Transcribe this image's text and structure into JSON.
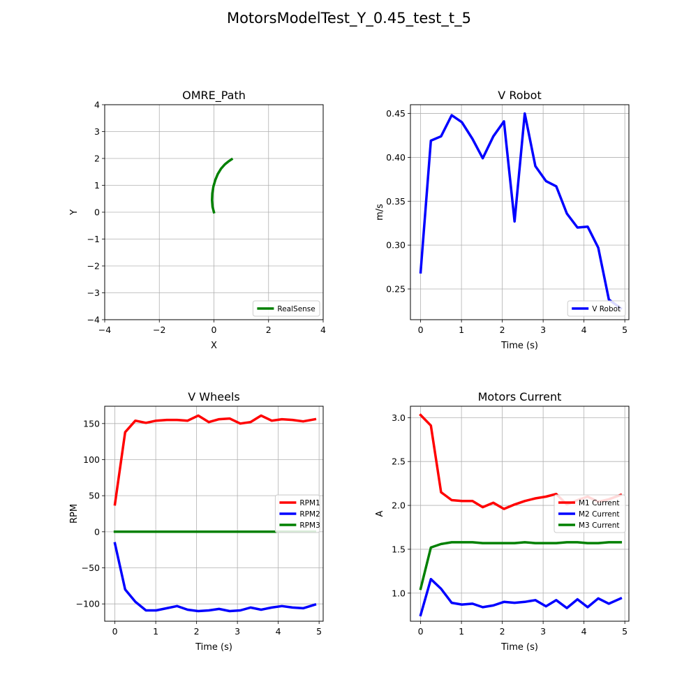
{
  "figure": {
    "suptitle": "MotorsModelTest_Y_0.45_test_t_5"
  },
  "chart_data": [
    {
      "type": "line",
      "title": "OMRE_Path",
      "xlabel": "X",
      "ylabel": "Y",
      "xlim": [
        -4,
        4
      ],
      "ylim": [
        -4,
        4
      ],
      "xticks": [
        -4,
        -2,
        0,
        2,
        4
      ],
      "yticks": [
        -4,
        -3,
        -2,
        -1,
        0,
        1,
        2,
        3,
        4
      ],
      "grid": true,
      "legend_position": "lower-right",
      "series": [
        {
          "name": "RealSense",
          "color": "#008000",
          "x": [
            0.0,
            -0.05,
            -0.07,
            -0.06,
            -0.02,
            0.05,
            0.14,
            0.26,
            0.4,
            0.55,
            0.65
          ],
          "y": [
            0.0,
            0.2,
            0.45,
            0.7,
            0.95,
            1.2,
            1.42,
            1.62,
            1.78,
            1.9,
            1.97
          ]
        }
      ]
    },
    {
      "type": "line",
      "title": "V Robot",
      "xlabel": "Time (s)",
      "ylabel": "m/s",
      "xlim": [
        -0.25,
        5.1
      ],
      "ylim": [
        0.215,
        0.46
      ],
      "xticks": [
        0,
        1,
        2,
        3,
        4,
        5
      ],
      "yticks": [
        0.25,
        0.3,
        0.35,
        0.4,
        0.45
      ],
      "ytick_format": 2,
      "grid": true,
      "legend_position": "lower-right",
      "series": [
        {
          "name": "V Robot",
          "color": "#0000ff",
          "x": [
            0.0,
            0.25,
            0.5,
            0.76,
            1.01,
            1.27,
            1.52,
            1.78,
            2.04,
            2.3,
            2.55,
            2.81,
            3.07,
            3.32,
            3.58,
            3.84,
            4.09,
            4.35,
            4.61,
            4.9
          ],
          "y": [
            0.269,
            0.419,
            0.424,
            0.448,
            0.44,
            0.421,
            0.399,
            0.424,
            0.441,
            0.327,
            0.45,
            0.39,
            0.373,
            0.367,
            0.336,
            0.32,
            0.321,
            0.297,
            0.238,
            0.228
          ]
        }
      ]
    },
    {
      "type": "line",
      "title": "V Wheels",
      "xlabel": "Time (s)",
      "ylabel": "RPM",
      "xlim": [
        -0.25,
        5.1
      ],
      "ylim": [
        -124,
        174
      ],
      "xticks": [
        0,
        1,
        2,
        3,
        4,
        5
      ],
      "yticks": [
        -100,
        -50,
        0,
        50,
        100,
        150
      ],
      "grid": true,
      "legend_position": "center-right",
      "series": [
        {
          "name": "RPM1",
          "color": "#ff0000",
          "x": [
            0.0,
            0.25,
            0.5,
            0.76,
            1.01,
            1.27,
            1.52,
            1.78,
            2.04,
            2.3,
            2.55,
            2.81,
            3.07,
            3.32,
            3.58,
            3.84,
            4.09,
            4.35,
            4.61,
            4.9
          ],
          "y": [
            38,
            138,
            154,
            151,
            154,
            155,
            155,
            154,
            161,
            152,
            156,
            157,
            150,
            152,
            161,
            154,
            156,
            155,
            153,
            156
          ]
        },
        {
          "name": "RPM2",
          "color": "#0000ff",
          "x": [
            0.0,
            0.25,
            0.5,
            0.76,
            1.01,
            1.27,
            1.52,
            1.78,
            2.04,
            2.3,
            2.55,
            2.81,
            3.07,
            3.32,
            3.58,
            3.84,
            4.09,
            4.35,
            4.61,
            4.9
          ],
          "y": [
            -16,
            -80,
            -97,
            -109,
            -109,
            -106,
            -103,
            -108,
            -110,
            -109,
            -107,
            -110,
            -109,
            -105,
            -108,
            -105,
            -103,
            -105,
            -106,
            -101
          ]
        },
        {
          "name": "RPM3",
          "color": "#008000",
          "x": [
            0.0,
            4.9
          ],
          "y": [
            0,
            0
          ]
        }
      ]
    },
    {
      "type": "line",
      "title": "Motors Current",
      "xlabel": "Time (s)",
      "ylabel": "A",
      "xlim": [
        -0.25,
        5.1
      ],
      "ylim": [
        0.68,
        3.13
      ],
      "xticks": [
        0,
        1,
        2,
        3,
        4,
        5
      ],
      "yticks": [
        1.0,
        1.5,
        2.0,
        2.5,
        3.0
      ],
      "ytick_format": 1,
      "grid": true,
      "legend_position": "center-right",
      "series": [
        {
          "name": "M1 Current",
          "color": "#ff0000",
          "x": [
            0.0,
            0.25,
            0.5,
            0.76,
            1.01,
            1.27,
            1.52,
            1.78,
            2.04,
            2.3,
            2.55,
            2.81,
            3.07,
            3.32,
            3.58,
            3.84,
            4.09,
            4.35,
            4.61,
            4.9
          ],
          "y": [
            3.03,
            2.91,
            2.15,
            2.06,
            2.05,
            2.05,
            1.98,
            2.03,
            1.96,
            2.01,
            2.05,
            2.08,
            2.1,
            2.13,
            2.01,
            2.06,
            2.1,
            2.04,
            2.07,
            2.12
          ]
        },
        {
          "name": "M2 Current",
          "color": "#0000ff",
          "x": [
            0.0,
            0.25,
            0.5,
            0.76,
            1.01,
            1.27,
            1.52,
            1.78,
            2.04,
            2.3,
            2.55,
            2.81,
            3.07,
            3.32,
            3.58,
            3.84,
            4.09,
            4.35,
            4.61,
            4.9
          ],
          "y": [
            0.75,
            1.16,
            1.05,
            0.89,
            0.87,
            0.88,
            0.84,
            0.86,
            0.9,
            0.89,
            0.9,
            0.92,
            0.85,
            0.92,
            0.83,
            0.93,
            0.84,
            0.94,
            0.88,
            0.94
          ]
        },
        {
          "name": "M3 Current",
          "color": "#008000",
          "x": [
            0.0,
            0.25,
            0.5,
            0.76,
            1.01,
            1.27,
            1.52,
            1.78,
            2.04,
            2.3,
            2.55,
            2.81,
            3.07,
            3.32,
            3.58,
            3.84,
            4.09,
            4.35,
            4.61,
            4.9
          ],
          "y": [
            1.05,
            1.52,
            1.56,
            1.58,
            1.58,
            1.58,
            1.57,
            1.57,
            1.57,
            1.57,
            1.58,
            1.57,
            1.57,
            1.57,
            1.58,
            1.58,
            1.57,
            1.57,
            1.58,
            1.58
          ]
        }
      ]
    }
  ]
}
